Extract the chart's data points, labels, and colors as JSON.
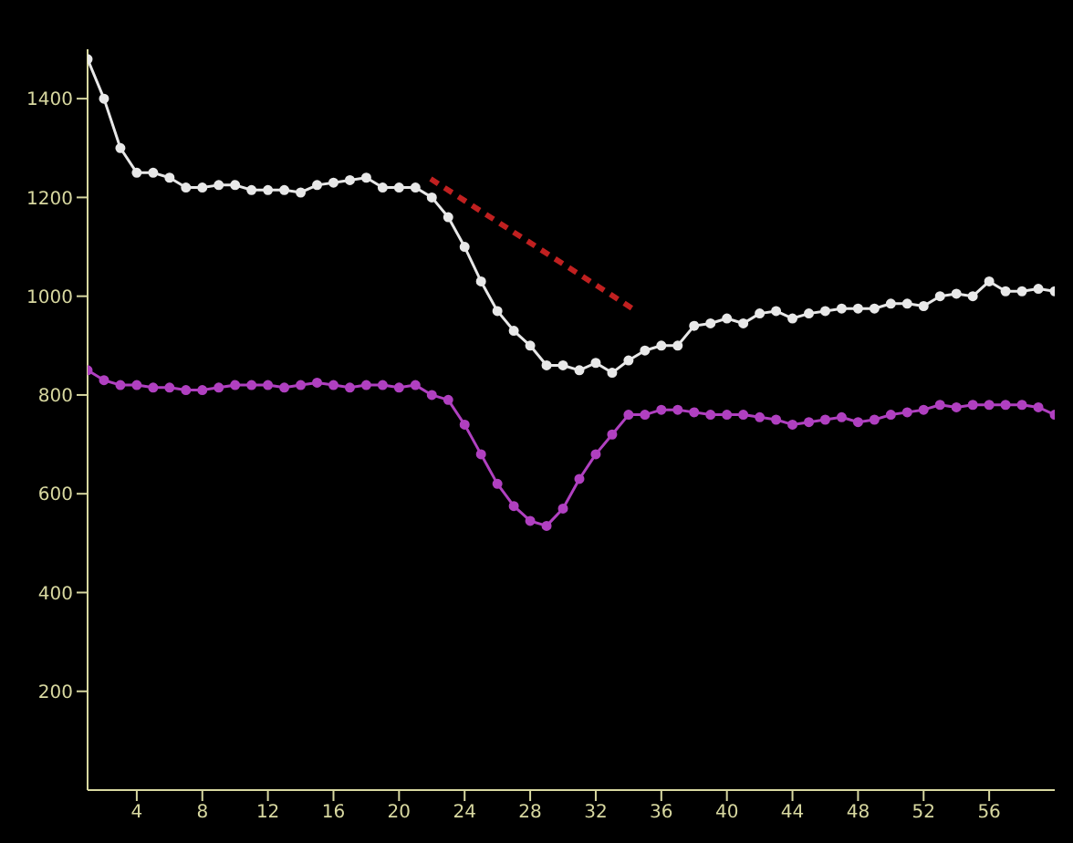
{
  "chart_data": {
    "type": "line",
    "x": [
      1,
      2,
      3,
      4,
      5,
      6,
      7,
      8,
      9,
      10,
      11,
      12,
      13,
      14,
      15,
      16,
      17,
      18,
      19,
      20,
      21,
      22,
      23,
      24,
      25,
      26,
      27,
      28,
      29,
      30,
      31,
      32,
      33,
      34,
      35,
      36,
      37,
      38,
      39,
      40,
      41,
      42,
      43,
      44,
      45,
      46,
      47,
      48,
      49,
      50,
      51,
      52,
      53,
      54,
      55,
      56,
      57,
      58,
      59,
      60
    ],
    "series": [
      {
        "color": "#e8e8e8",
        "values": [
          1480,
          1400,
          1300,
          1250,
          1250,
          1240,
          1220,
          1220,
          1225,
          1225,
          1215,
          1215,
          1215,
          1210,
          1225,
          1230,
          1235,
          1240,
          1220,
          1220,
          1220,
          1200,
          1160,
          1100,
          1030,
          970,
          930,
          900,
          860,
          860,
          850,
          865,
          845,
          870,
          890,
          900,
          900,
          940,
          945,
          955,
          945,
          965,
          970,
          955,
          965,
          970,
          975,
          975,
          975,
          985,
          985,
          980,
          1000,
          1005,
          1000,
          1030,
          1010,
          1010,
          1015,
          1010
        ]
      },
      {
        "color": "#b040c0",
        "values": [
          850,
          830,
          820,
          820,
          815,
          815,
          810,
          810,
          815,
          820,
          820,
          820,
          815,
          820,
          825,
          820,
          815,
          820,
          820,
          815,
          820,
          800,
          790,
          740,
          680,
          620,
          575,
          545,
          535,
          570,
          630,
          680,
          720,
          760,
          760,
          770,
          770,
          765,
          760,
          760,
          760,
          755,
          750,
          740,
          745,
          750,
          755,
          745,
          750,
          760,
          765,
          770,
          780,
          775,
          780,
          780,
          780,
          780,
          775,
          760
        ]
      }
    ],
    "xlim": [
      1,
      60
    ],
    "xticks": [
      4,
      8,
      12,
      16,
      20,
      24,
      28,
      32,
      36,
      40,
      44,
      48,
      52,
      56
    ],
    "ylim": [
      0,
      1500
    ],
    "yticks": [
      200,
      400,
      600,
      800,
      1000,
      1200,
      1400
    ],
    "marker": "circle",
    "line_style": "solid"
  }
}
